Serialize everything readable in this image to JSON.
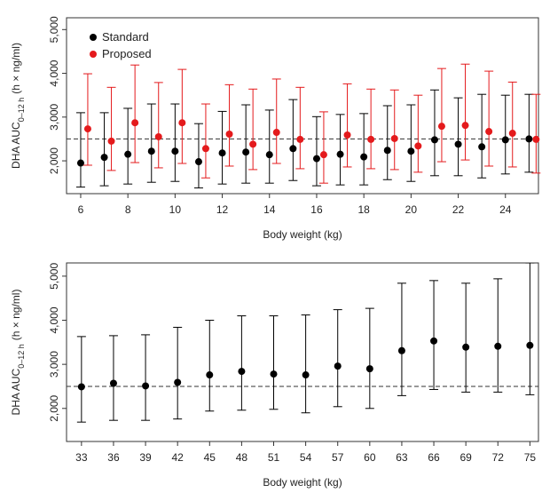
{
  "chart_data": [
    {
      "type": "scatter",
      "xlabel": "Body weight (kg)",
      "ylabel_main": "DHA AUC",
      "ylabel_sub": "0–12 h",
      "ylabel_unit": "(h × ng/ml)",
      "xlim": [
        5.4,
        25.4
      ],
      "xticks": [
        6,
        8,
        10,
        12,
        14,
        16,
        18,
        20,
        22,
        24
      ],
      "ylim": [
        1250,
        5270
      ],
      "yticks": [
        {
          "value": 2000,
          "label": "2,000"
        },
        {
          "value": 3000,
          "label": "3,000"
        },
        {
          "value": 4000,
          "label": "4,000"
        },
        {
          "value": 5000,
          "label": "5,000"
        }
      ],
      "reference_line": 2500,
      "legend": "top-left",
      "series": [
        {
          "name": "Standard",
          "color": "#000000",
          "x": [
            6,
            7,
            8,
            9,
            10,
            11,
            12,
            13,
            14,
            15,
            16,
            17,
            18,
            19,
            20,
            21,
            22,
            23,
            24,
            25
          ],
          "values": [
            1950,
            2080,
            2150,
            2220,
            2220,
            1980,
            2180,
            2200,
            2140,
            2280,
            2050,
            2150,
            2090,
            2240,
            2220,
            2480,
            2380,
            2320,
            2480,
            2500
          ],
          "lower": [
            1400,
            1430,
            1470,
            1510,
            1530,
            1380,
            1470,
            1490,
            1490,
            1550,
            1430,
            1450,
            1450,
            1570,
            1530,
            1660,
            1660,
            1610,
            1700,
            1740
          ],
          "upper": [
            3100,
            3100,
            3200,
            3300,
            3300,
            2850,
            3130,
            3280,
            3160,
            3400,
            3010,
            3060,
            3080,
            3260,
            3280,
            3620,
            3440,
            3520,
            3500,
            3520
          ]
        },
        {
          "name": "Proposed",
          "color": "#e41a1c",
          "x": [
            6.3,
            7.3,
            8.3,
            9.3,
            10.3,
            11.3,
            12.3,
            13.3,
            14.3,
            15.3,
            16.3,
            17.3,
            18.3,
            19.3,
            20.3,
            21.3,
            22.3,
            23.3,
            24.3,
            25.3
          ],
          "values": [
            2730,
            2450,
            2870,
            2550,
            2870,
            2280,
            2610,
            2380,
            2650,
            2490,
            2140,
            2590,
            2490,
            2510,
            2340,
            2790,
            2810,
            2670,
            2630,
            2490
          ],
          "lower": [
            1900,
            1780,
            1960,
            1840,
            1940,
            1610,
            1880,
            1800,
            1940,
            1820,
            1490,
            1860,
            1820,
            1800,
            1740,
            1980,
            2020,
            1880,
            1860,
            1720
          ],
          "upper": [
            3990,
            3680,
            4190,
            3790,
            4090,
            3300,
            3740,
            3640,
            3870,
            3680,
            3120,
            3760,
            3640,
            3620,
            3500,
            4110,
            4210,
            4050,
            3800,
            3520
          ]
        }
      ]
    },
    {
      "type": "scatter",
      "xlabel": "Body weight (kg)",
      "ylabel_main": "DHA AUC",
      "ylabel_sub": "0–12 h",
      "ylabel_unit": "(h × ng/ml)",
      "xlim": [
        31.6,
        75.8
      ],
      "xticks": [
        33,
        36,
        39,
        42,
        45,
        48,
        51,
        54,
        57,
        60,
        63,
        66,
        69,
        72,
        75
      ],
      "ylim": [
        1250,
        5300
      ],
      "yticks": [
        {
          "value": 2000,
          "label": "2,000"
        },
        {
          "value": 3000,
          "label": "3,000"
        },
        {
          "value": 4000,
          "label": "4,000"
        },
        {
          "value": 5000,
          "label": "5,000"
        }
      ],
      "reference_line": 2500,
      "series": [
        {
          "color": "#000000",
          "x": [
            33,
            36,
            39,
            42,
            45,
            48,
            51,
            54,
            57,
            60,
            63,
            66,
            69,
            72,
            75
          ],
          "values": [
            2490,
            2570,
            2510,
            2590,
            2760,
            2840,
            2780,
            2760,
            2960,
            2900,
            3310,
            3530,
            3390,
            3410,
            3430
          ],
          "lower": [
            1690,
            1730,
            1730,
            1760,
            1940,
            1960,
            1980,
            1900,
            2040,
            2000,
            2290,
            2430,
            2370,
            2370,
            2310
          ],
          "upper": [
            3630,
            3650,
            3670,
            3840,
            4000,
            4100,
            4100,
            4120,
            4240,
            4270,
            4840,
            4900,
            4840,
            4940,
            5300
          ]
        }
      ]
    }
  ]
}
